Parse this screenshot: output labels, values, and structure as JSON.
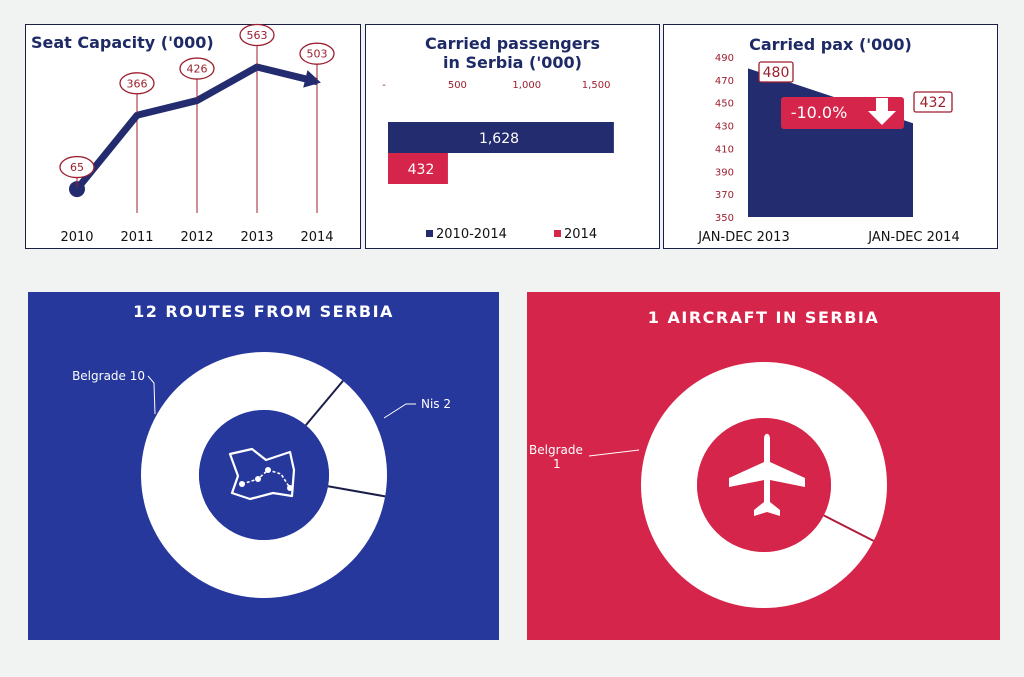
{
  "colors": {
    "navy": "#232c6e",
    "red": "#d6254a",
    "label_red": "#9c1f2e",
    "routes_bg": "#26389c",
    "aircraft_bg": "#d6254a"
  },
  "chart_data": [
    {
      "type": "line",
      "title": "Seat Capacity ('000)",
      "categories": [
        "2010",
        "2011",
        "2012",
        "2013",
        "2014"
      ],
      "values": [
        65,
        366,
        426,
        563,
        503
      ],
      "data_labels": [
        "65",
        "366",
        "426",
        "563",
        "503"
      ],
      "grid": false,
      "legend": "none"
    },
    {
      "type": "bar",
      "orientation": "horizontal",
      "title_line1": "Carried passengers",
      "title_line2": "in Serbia ('000)",
      "xlim": [
        0,
        1600
      ],
      "tick_values": [
        0,
        500,
        1000,
        1500
      ],
      "tick_labels": [
        "-",
        "500",
        "1,000",
        "1,500"
      ],
      "series": [
        {
          "name": "2010-2014",
          "values": [
            1628
          ],
          "label": "1,628",
          "color": "#232c6e"
        },
        {
          "name": "2014",
          "values": [
            432
          ],
          "label": "432",
          "color": "#d6254a"
        }
      ],
      "legend": "bottom"
    },
    {
      "type": "area",
      "title": "Carried pax ('000)",
      "categories": [
        "JAN-DEC 2013",
        "JAN-DEC 2014"
      ],
      "values": [
        480,
        432
      ],
      "data_labels": [
        "480",
        "432"
      ],
      "ylim": [
        350,
        490
      ],
      "yticks": [
        "490",
        "470",
        "450",
        "430",
        "410",
        "390",
        "370",
        "350"
      ],
      "annotation": "-10.0%"
    },
    {
      "type": "pie",
      "title": "12 ROUTES FROM SERBIA",
      "slices": [
        {
          "label": "Belgrade 10",
          "value": 10
        },
        {
          "label": "Nis 2",
          "value": 2
        }
      ],
      "center_icon": "map-route-icon"
    },
    {
      "type": "pie",
      "title": "1 AIRCRAFT IN SERBIA",
      "slices": [
        {
          "label_line1": "Belgrade",
          "label_line2": "1",
          "value": 1
        }
      ],
      "center_icon": "airplane-icon"
    }
  ]
}
